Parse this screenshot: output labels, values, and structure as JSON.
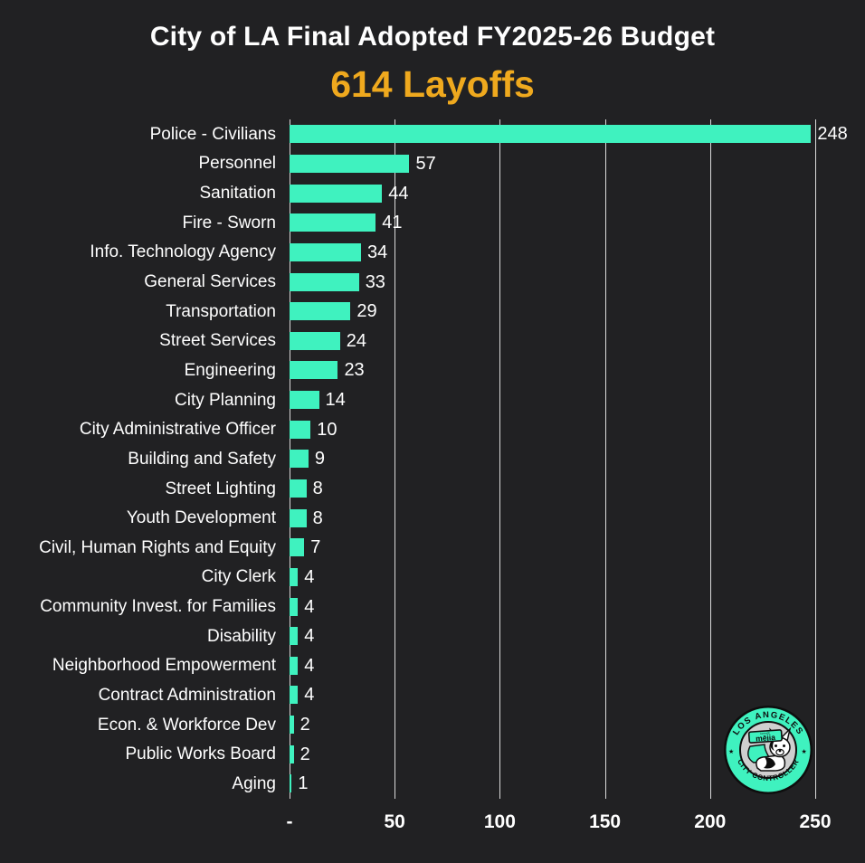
{
  "header": {
    "title": "City of LA Final Adopted FY2025-26 Budget",
    "subtitle": "614 Layoffs"
  },
  "colors": {
    "background": "#212123",
    "text": "#FFFFFF",
    "subtitle": "#EFA91E",
    "bar": "#3FF2BF",
    "gridline": "#DADADA"
  },
  "chart_data": {
    "type": "bar",
    "orientation": "horizontal",
    "title": "City of LA Final Adopted FY2025-26 Budget",
    "subtitle": "614 Layoffs",
    "categories": [
      "Police - Civilians",
      "Personnel",
      "Sanitation",
      "Fire - Sworn",
      "Info. Technology Agency",
      "General Services",
      "Transportation",
      "Street Services",
      "Engineering",
      "City Planning",
      "City Administrative Officer",
      "Building and Safety",
      "Street Lighting",
      "Youth Development",
      "Civil, Human Rights and Equity",
      "City Clerk",
      "Community Invest. for Families",
      "Disability",
      "Neighborhood Empowerment",
      "Contract Administration",
      "Econ. & Workforce Dev",
      "Public Works Board",
      "Aging"
    ],
    "values": [
      248,
      57,
      44,
      41,
      34,
      33,
      29,
      24,
      23,
      14,
      10,
      9,
      8,
      8,
      7,
      4,
      4,
      4,
      4,
      4,
      2,
      2,
      1
    ],
    "total": 614,
    "xlim": [
      0,
      250
    ],
    "x_ticks": [
      {
        "value": 0,
        "label": "-"
      },
      {
        "value": 50,
        "label": "50"
      },
      {
        "value": 100,
        "label": "100"
      },
      {
        "value": 150,
        "label": "150"
      },
      {
        "value": 200,
        "label": "200"
      },
      {
        "value": 250,
        "label": "250"
      }
    ],
    "grid": true,
    "value_labels": true,
    "legend": false
  },
  "logo": {
    "top_text": "LOS ANGELES",
    "bottom_text": "CITY CONTROLLER",
    "small_text": "kenneth",
    "name_text": "mējia",
    "star_icon": "★"
  }
}
